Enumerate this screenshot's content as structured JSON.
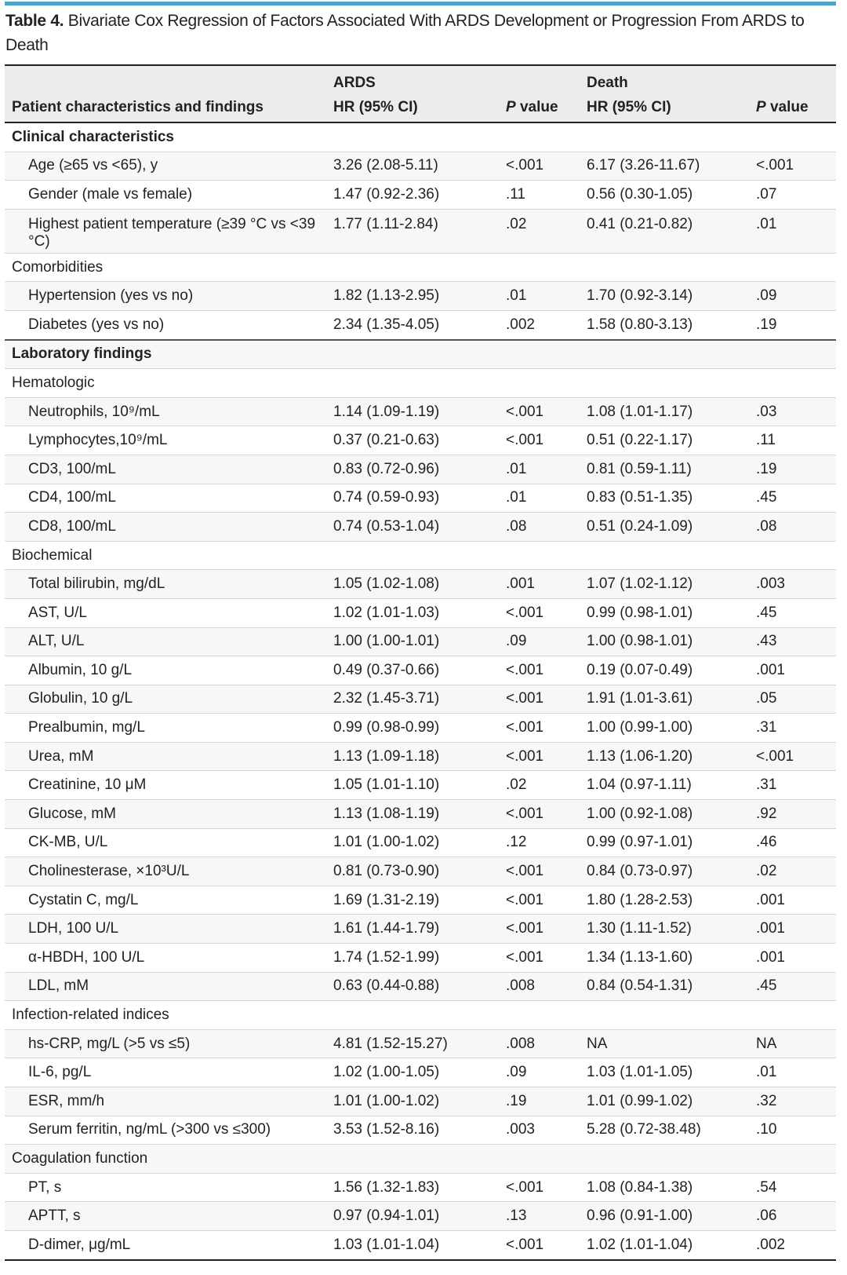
{
  "title": {
    "label": "Table 4.",
    "text": "Bivariate Cox Regression of Factors Associated With ARDS Development or Progression From ARDS to Death"
  },
  "header": {
    "group_ards": "ARDS",
    "group_death": "Death",
    "col_characteristics": "Patient characteristics and findings",
    "col_hr_ards": "HR (95% CI)",
    "col_p_ards_italic": "P",
    "col_p_ards_rest": " value",
    "col_hr_death": "HR (95% CI)",
    "col_p_death_italic": "P",
    "col_p_death_rest": " value"
  },
  "rows": [
    {
      "type": "section",
      "name": "Clinical characteristics"
    },
    {
      "type": "row",
      "name": "Age (≥65 vs <65), y",
      "ards_hr": "3.26 (2.08-5.11)",
      "ards_p": "<.001",
      "death_hr": "6.17 (3.26-11.67)",
      "death_p": "<.001"
    },
    {
      "type": "row",
      "name": "Gender (male vs female)",
      "ards_hr": "1.47 (0.92-2.36)",
      "ards_p": ".11",
      "death_hr": "0.56 (0.30-1.05)",
      "death_p": ".07"
    },
    {
      "type": "row",
      "name": "Highest patient temperature (≥39 °C vs <39 °C)",
      "ards_hr": "1.77 (1.11-2.84)",
      "ards_p": ".02",
      "death_hr": "0.41 (0.21-0.82)",
      "death_p": ".01"
    },
    {
      "type": "subsection",
      "name": "Comorbidities"
    },
    {
      "type": "row",
      "name": "Hypertension (yes vs no)",
      "ards_hr": "1.82 (1.13-2.95)",
      "ards_p": ".01",
      "death_hr": "1.70 (0.92-3.14)",
      "death_p": ".09"
    },
    {
      "type": "row",
      "name": "Diabetes (yes vs no)",
      "ards_hr": "2.34 (1.35-4.05)",
      "ards_p": ".002",
      "death_hr": "1.58 (0.80-3.13)",
      "death_p": ".19"
    },
    {
      "type": "section",
      "name": "Laboratory findings"
    },
    {
      "type": "subsection",
      "name": "Hematologic"
    },
    {
      "type": "row",
      "name": "Neutrophils, 10⁹/mL",
      "ards_hr": "1.14 (1.09-1.19)",
      "ards_p": "<.001",
      "death_hr": "1.08 (1.01-1.17)",
      "death_p": ".03"
    },
    {
      "type": "row",
      "name": "Lymphocytes,10⁹/mL",
      "ards_hr": "0.37 (0.21-0.63)",
      "ards_p": "<.001",
      "death_hr": "0.51 (0.22-1.17)",
      "death_p": ".11"
    },
    {
      "type": "row",
      "name": "CD3, 100/mL",
      "ards_hr": "0.83 (0.72-0.96)",
      "ards_p": ".01",
      "death_hr": "0.81 (0.59-1.11)",
      "death_p": ".19"
    },
    {
      "type": "row",
      "name": "CD4, 100/mL",
      "ards_hr": "0.74 (0.59-0.93)",
      "ards_p": ".01",
      "death_hr": "0.83 (0.51-1.35)",
      "death_p": ".45"
    },
    {
      "type": "row",
      "name": "CD8, 100/mL",
      "ards_hr": "0.74 (0.53-1.04)",
      "ards_p": ".08",
      "death_hr": "0.51 (0.24-1.09)",
      "death_p": ".08"
    },
    {
      "type": "subsection",
      "name": "Biochemical"
    },
    {
      "type": "row",
      "name": "Total bilirubin, mg/dL",
      "ards_hr": "1.05 (1.02-1.08)",
      "ards_p": ".001",
      "death_hr": "1.07 (1.02-1.12)",
      "death_p": ".003"
    },
    {
      "type": "row",
      "name": "AST, U/L",
      "ards_hr": "1.02 (1.01-1.03)",
      "ards_p": "<.001",
      "death_hr": "0.99 (0.98-1.01)",
      "death_p": ".45"
    },
    {
      "type": "row",
      "name": "ALT, U/L",
      "ards_hr": "1.00 (1.00-1.01)",
      "ards_p": ".09",
      "death_hr": "1.00 (0.98-1.01)",
      "death_p": ".43"
    },
    {
      "type": "row",
      "name": "Albumin, 10 g/L",
      "ards_hr": "0.49 (0.37-0.66)",
      "ards_p": "<.001",
      "death_hr": "0.19 (0.07-0.49)",
      "death_p": ".001"
    },
    {
      "type": "row",
      "name": "Globulin, 10 g/L",
      "ards_hr": "2.32 (1.45-3.71)",
      "ards_p": "<.001",
      "death_hr": "1.91 (1.01-3.61)",
      "death_p": ".05"
    },
    {
      "type": "row",
      "name": "Prealbumin, mg/L",
      "ards_hr": "0.99 (0.98-0.99)",
      "ards_p": "<.001",
      "death_hr": "1.00 (0.99-1.00)",
      "death_p": ".31"
    },
    {
      "type": "row",
      "name": "Urea, mM",
      "ards_hr": "1.13 (1.09-1.18)",
      "ards_p": "<.001",
      "death_hr": "1.13 (1.06-1.20)",
      "death_p": "<.001"
    },
    {
      "type": "row",
      "name": "Creatinine, 10 μM",
      "ards_hr": "1.05 (1.01-1.10)",
      "ards_p": ".02",
      "death_hr": "1.04 (0.97-1.11)",
      "death_p": ".31"
    },
    {
      "type": "row",
      "name": "Glucose, mM",
      "ards_hr": "1.13 (1.08-1.19)",
      "ards_p": "<.001",
      "death_hr": "1.00 (0.92-1.08)",
      "death_p": ".92"
    },
    {
      "type": "row",
      "name": "CK-MB, U/L",
      "ards_hr": "1.01 (1.00-1.02)",
      "ards_p": ".12",
      "death_hr": "0.99 (0.97-1.01)",
      "death_p": ".46"
    },
    {
      "type": "row",
      "name": "Cholinesterase, ×10³U/L",
      "ards_hr": "0.81 (0.73-0.90)",
      "ards_p": "<.001",
      "death_hr": "0.84 (0.73-0.97)",
      "death_p": ".02"
    },
    {
      "type": "row",
      "name": "Cystatin C, mg/L",
      "ards_hr": "1.69 (1.31-2.19)",
      "ards_p": "<.001",
      "death_hr": "1.80 (1.28-2.53)",
      "death_p": ".001"
    },
    {
      "type": "row",
      "name": "LDH, 100 U/L",
      "ards_hr": "1.61 (1.44-1.79)",
      "ards_p": "<.001",
      "death_hr": "1.30 (1.11-1.52)",
      "death_p": ".001"
    },
    {
      "type": "row",
      "name": "α-HBDH, 100 U/L",
      "ards_hr": "1.74 (1.52-1.99)",
      "ards_p": "<.001",
      "death_hr": "1.34 (1.13-1.60)",
      "death_p": ".001"
    },
    {
      "type": "row",
      "name": "LDL, mM",
      "ards_hr": "0.63 (0.44-0.88)",
      "ards_p": ".008",
      "death_hr": "0.84 (0.54-1.31)",
      "death_p": ".45"
    },
    {
      "type": "subsection",
      "name": "Infection-related indices"
    },
    {
      "type": "row",
      "name": "hs-CRP, mg/L (>5 vs ≤5)",
      "ards_hr": "4.81 (1.52-15.27)",
      "ards_p": ".008",
      "death_hr": "NA",
      "death_p": "NA"
    },
    {
      "type": "row",
      "name": "IL-6, pg/L",
      "ards_hr": "1.02 (1.00-1.05)",
      "ards_p": ".09",
      "death_hr": "1.03 (1.01-1.05)",
      "death_p": ".01"
    },
    {
      "type": "row",
      "name": "ESR, mm/h",
      "ards_hr": "1.01 (1.00-1.02)",
      "ards_p": ".19",
      "death_hr": "1.01 (0.99-1.02)",
      "death_p": ".32"
    },
    {
      "type": "row",
      "name": "Serum ferritin, ng/mL (>300 vs ≤300)",
      "ards_hr": "3.53 (1.52-8.16)",
      "ards_p": ".003",
      "death_hr": "5.28 (0.72-38.48)",
      "death_p": ".10"
    },
    {
      "type": "subsection",
      "name": "Coagulation function"
    },
    {
      "type": "row",
      "name": "PT, s",
      "ards_hr": "1.56 (1.32-1.83)",
      "ards_p": "<.001",
      "death_hr": "1.08 (0.84-1.38)",
      "death_p": ".54"
    },
    {
      "type": "row",
      "name": "APTT, s",
      "ards_hr": "0.97 (0.94-1.01)",
      "ards_p": ".13",
      "death_hr": "0.96 (0.91-1.00)",
      "death_p": ".06"
    },
    {
      "type": "row",
      "name": "D-dimer, μg/mL",
      "ards_hr": "1.03 (1.01-1.04)",
      "ards_p": "<.001",
      "death_hr": "1.02 (1.01-1.04)",
      "death_p": ".002"
    }
  ]
}
